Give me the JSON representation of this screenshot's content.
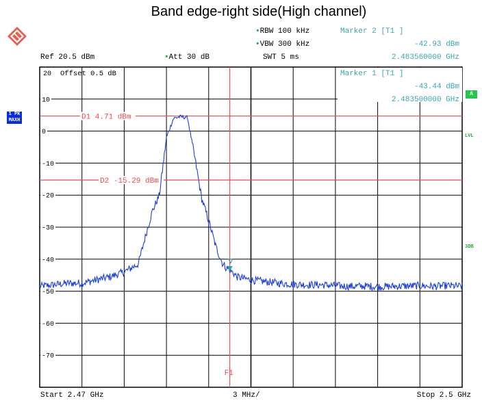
{
  "chart_data": {
    "type": "line",
    "title": "Band edge-right side(High channel)",
    "header": {
      "rbw": "RBW 100 kHz",
      "vbw": "VBW 300 kHz",
      "swt": "SWT 5 ms",
      "ref": "Ref  20.5 dBm",
      "att": "Att  30 dB",
      "offset": "Offset  0.5 dB",
      "top_gridline_label": "20"
    },
    "marker2": {
      "label": "Marker 2 [T1 ]",
      "level": "-42.93 dBm",
      "freq": "2.483560000 GHz"
    },
    "marker1": {
      "label": "Marker 1 [T1 ]",
      "level": "-43.44 dBm",
      "freq": "2.483500000 GHz"
    },
    "side_labels": {
      "trace_1": "1 PK",
      "trace_2": "MAXH",
      "a": "A",
      "lvl": "LVL",
      "db3": "3DB"
    },
    "display_lines": [
      {
        "label": "D1 4.71 dBm",
        "value": 4.71
      },
      {
        "label": "D2 -15.29 dBm",
        "value": -15.29
      }
    ],
    "f1_line": {
      "label": "F1",
      "freq_ghz": 2.4835
    },
    "x_axis": {
      "start_label": "Start 2.47 GHz",
      "div_label": "3 MHz/",
      "stop_label": "Stop 2.5 GHz",
      "start_ghz": 2.47,
      "stop_ghz": 2.5
    },
    "y_axis": {
      "ylim": [
        -80,
        20
      ],
      "tick_labels": [
        "10",
        "0",
        "-10",
        "-20",
        "-30",
        "-40",
        "-50",
        "-60",
        "-70"
      ]
    },
    "grid": true,
    "series": [
      {
        "x": [
          2.47,
          2.471,
          2.472,
          2.473,
          2.474,
          2.475,
          2.476,
          2.477,
          2.4775,
          2.478,
          2.4785,
          2.479,
          2.4795,
          2.48,
          2.4805,
          2.481,
          2.4815,
          2.482,
          2.4825,
          2.483,
          2.4832,
          2.4835,
          2.4838,
          2.484,
          2.485,
          2.486,
          2.487,
          2.488,
          2.489,
          2.49,
          2.491,
          2.492,
          2.493,
          2.494,
          2.495,
          2.496,
          2.497,
          2.498,
          2.499,
          2.5
        ],
        "y": [
          -48.5,
          -48,
          -47.5,
          -47.5,
          -46.5,
          -45.5,
          -44,
          -41.5,
          -33,
          -25,
          -20,
          -2,
          4,
          4.5,
          4.2,
          -8,
          -21,
          -28,
          -36,
          -41.5,
          -42.5,
          -43.4,
          -44.5,
          -45.5,
          -46.5,
          -47,
          -47.5,
          -47.8,
          -48,
          -48,
          -48.3,
          -48.5,
          -48.4,
          -48.6,
          -48.5,
          -48.4,
          -48.3,
          -48.5,
          -48.3,
          -48.5
        ]
      }
    ]
  }
}
